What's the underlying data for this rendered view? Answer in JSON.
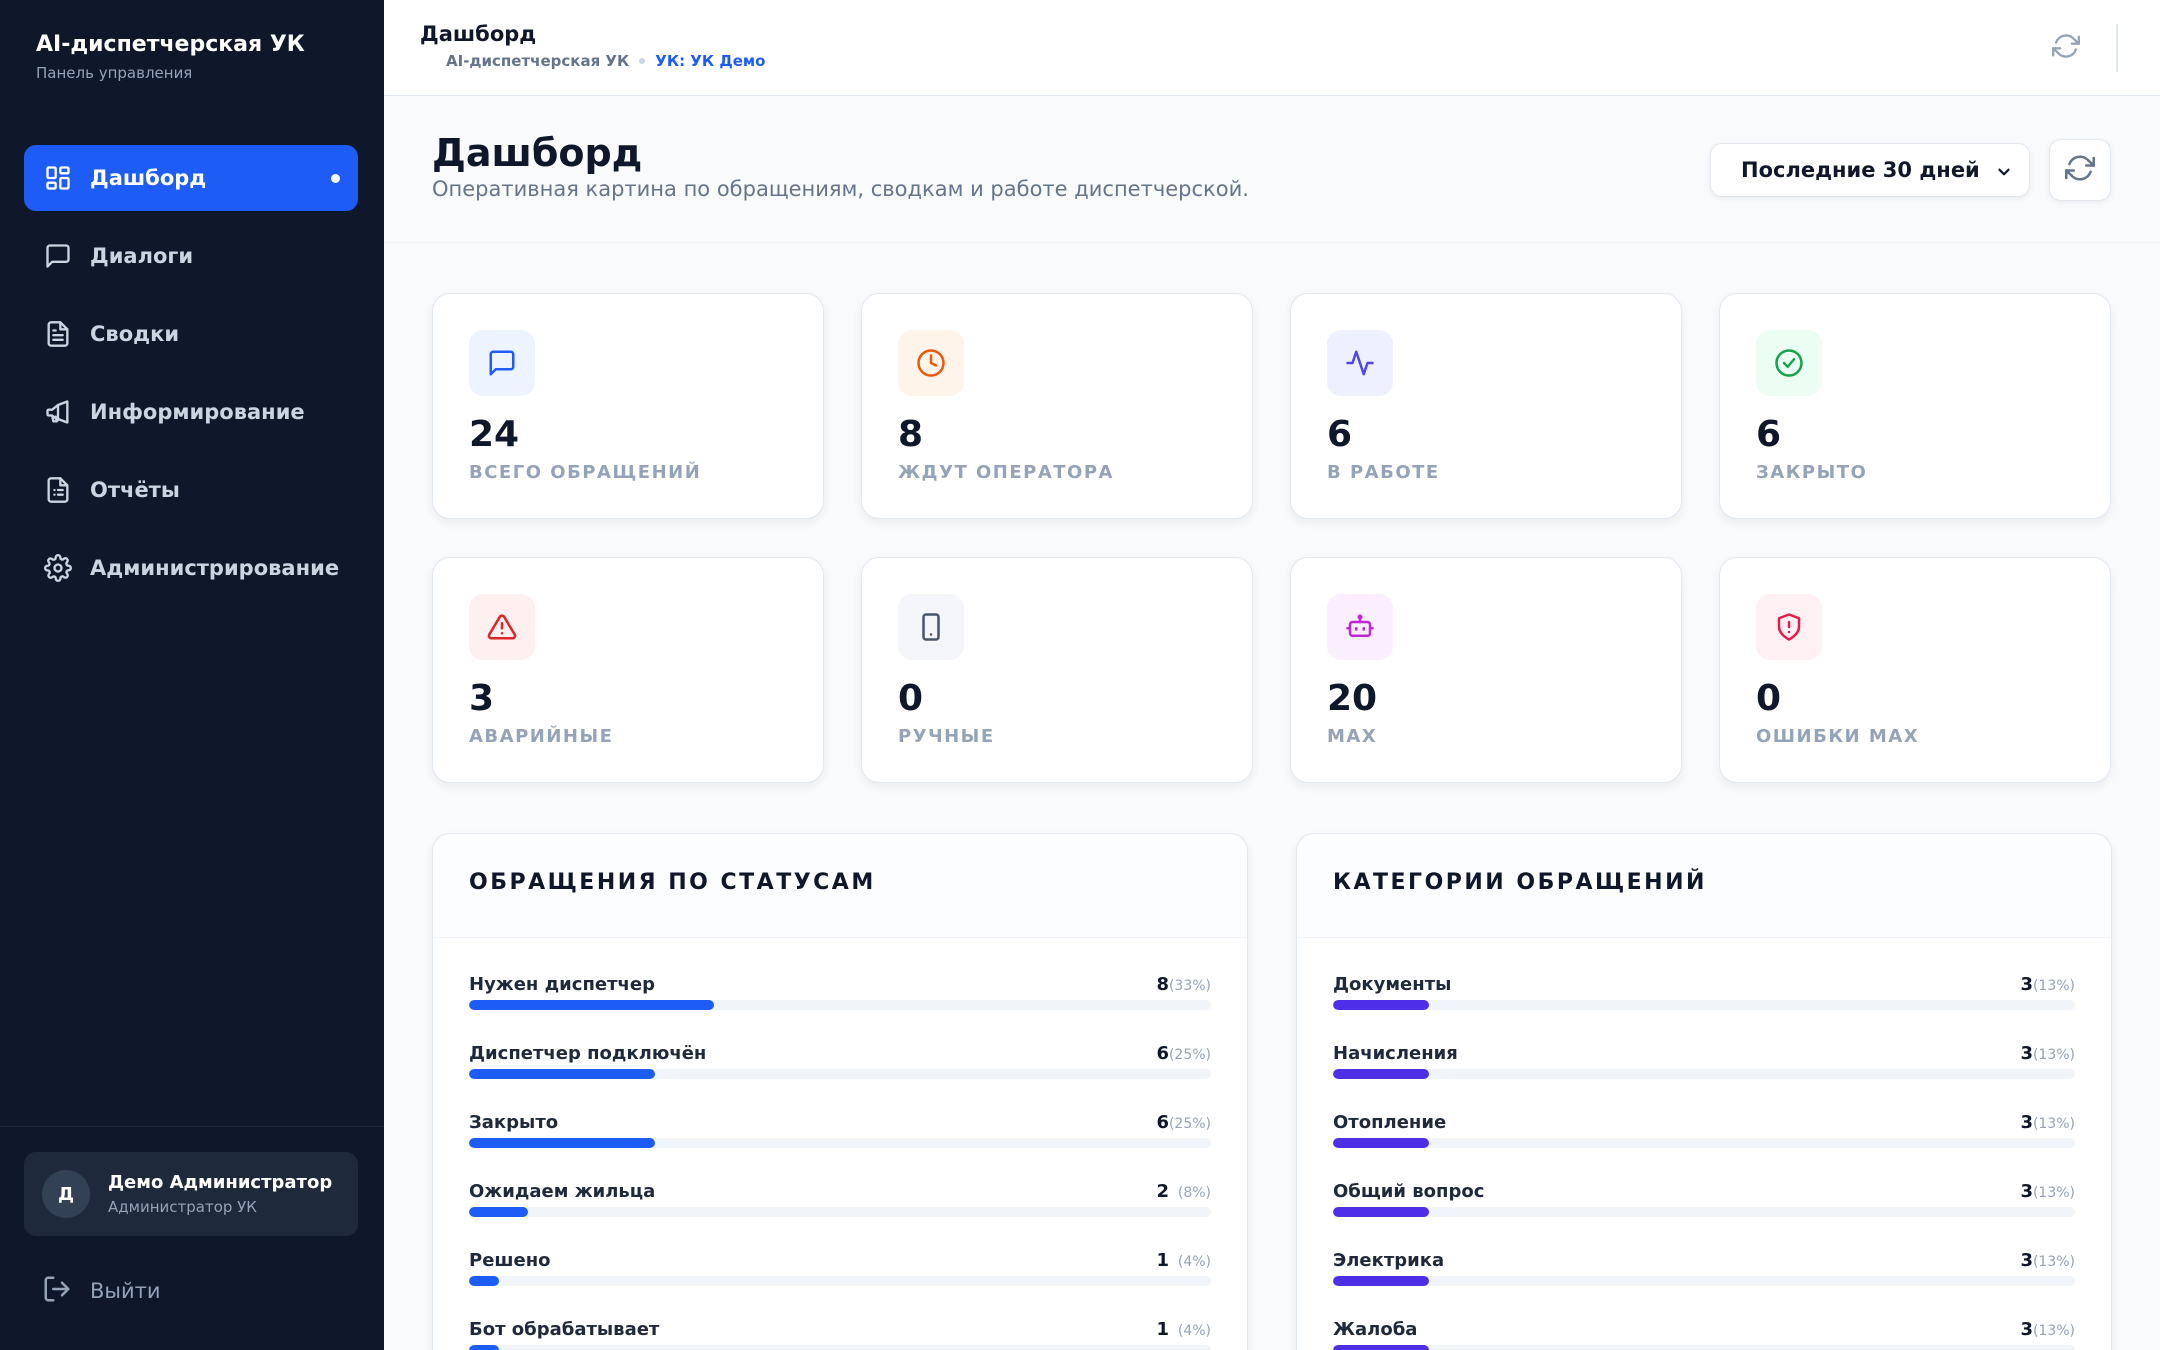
{
  "sidebar": {
    "brand_title": "AI-диспетчерская УК",
    "brand_subtitle": "Панель управления",
    "items": [
      {
        "label": "Дашборд",
        "icon": "dashboard-icon",
        "active": true
      },
      {
        "label": "Диалоги",
        "icon": "chat-icon"
      },
      {
        "label": "Сводки",
        "icon": "document-icon"
      },
      {
        "label": "Информирование",
        "icon": "megaphone-icon"
      },
      {
        "label": "Отчёты",
        "icon": "report-icon"
      },
      {
        "label": "Администрирование",
        "icon": "gear-icon"
      }
    ],
    "user": {
      "initial": "Д",
      "name": "Демо Администратор",
      "role": "Администратор УК"
    },
    "logout_label": "Выйти"
  },
  "topbar": {
    "title": "Дашборд",
    "breadcrumb": [
      "AI-диспетчерская УК",
      "УК: УК Демо"
    ]
  },
  "header": {
    "title": "Дашборд",
    "subtitle": "Оперативная картина по обращениям, сводкам и работе диспетчерской.",
    "period": "Последние 30 дней",
    "period_options": [
      "Последние 30 дней"
    ]
  },
  "stats": [
    {
      "value": "24",
      "label": "ВСЕГО ОБРАЩЕНИЙ",
      "icon": "chat-icon",
      "color": "#1d5cf5",
      "bg": "#eef4ff"
    },
    {
      "value": "8",
      "label": "ЖДУТ ОПЕРАТОРА",
      "icon": "clock-icon",
      "color": "#ea580c",
      "bg": "#fff4ea"
    },
    {
      "value": "6",
      "label": "В РАБОТЕ",
      "icon": "activity-icon",
      "color": "#4f46e5",
      "bg": "#eef0ff"
    },
    {
      "value": "6",
      "label": "ЗАКРЫТО",
      "icon": "check-circle-icon",
      "color": "#16a34a",
      "bg": "#ecfdf3"
    },
    {
      "value": "3",
      "label": "АВАРИЙНЫЕ",
      "icon": "warning-icon",
      "color": "#dc2626",
      "bg": "#fef0f0"
    },
    {
      "value": "0",
      "label": "РУЧНЫЕ",
      "icon": "phone-icon",
      "color": "#475569",
      "bg": "#f3f5f8"
    },
    {
      "value": "20",
      "label": "MAX",
      "icon": "bot-icon",
      "color": "#c026d3",
      "bg": "#fbefff"
    },
    {
      "value": "0",
      "label": "ОШИБКИ MAX",
      "icon": "shield-alert-icon",
      "color": "#e11d48",
      "bg": "#fff0f3"
    }
  ],
  "statuses_panel": {
    "title": "ОБРАЩЕНИЯ ПО СТАТУСАМ",
    "bar_color": "#1d5cf5",
    "rows": [
      {
        "label": "Нужен диспетчер",
        "count": "8",
        "pct_text": "(33%)",
        "fraction": 0.33
      },
      {
        "label": "Диспетчер подключён",
        "count": "6",
        "pct_text": "(25%)",
        "fraction": 0.25
      },
      {
        "label": "Закрыто",
        "count": "6",
        "pct_text": "(25%)",
        "fraction": 0.25
      },
      {
        "label": "Ожидаем жильца",
        "count": "2",
        "pct_text": "(8%)",
        "fraction": 0.08
      },
      {
        "label": "Решено",
        "count": "1",
        "pct_text": "(4%)",
        "fraction": 0.04
      },
      {
        "label": "Бот обрабатывает",
        "count": "1",
        "pct_text": "(4%)",
        "fraction": 0.04
      }
    ]
  },
  "categories_panel": {
    "title": "КАТЕГОРИИ ОБРАЩЕНИЙ",
    "bar_color": "#4f2ee8",
    "rows": [
      {
        "label": "Документы",
        "count": "3",
        "pct_text": "(13%)",
        "fraction": 0.13
      },
      {
        "label": "Начисления",
        "count": "3",
        "pct_text": "(13%)",
        "fraction": 0.13
      },
      {
        "label": "Отопление",
        "count": "3",
        "pct_text": "(13%)",
        "fraction": 0.13
      },
      {
        "label": "Общий вопрос",
        "count": "3",
        "pct_text": "(13%)",
        "fraction": 0.13
      },
      {
        "label": "Электрика",
        "count": "3",
        "pct_text": "(13%)",
        "fraction": 0.13
      },
      {
        "label": "Жалоба",
        "count": "3",
        "pct_text": "(13%)",
        "fraction": 0.13
      }
    ]
  }
}
